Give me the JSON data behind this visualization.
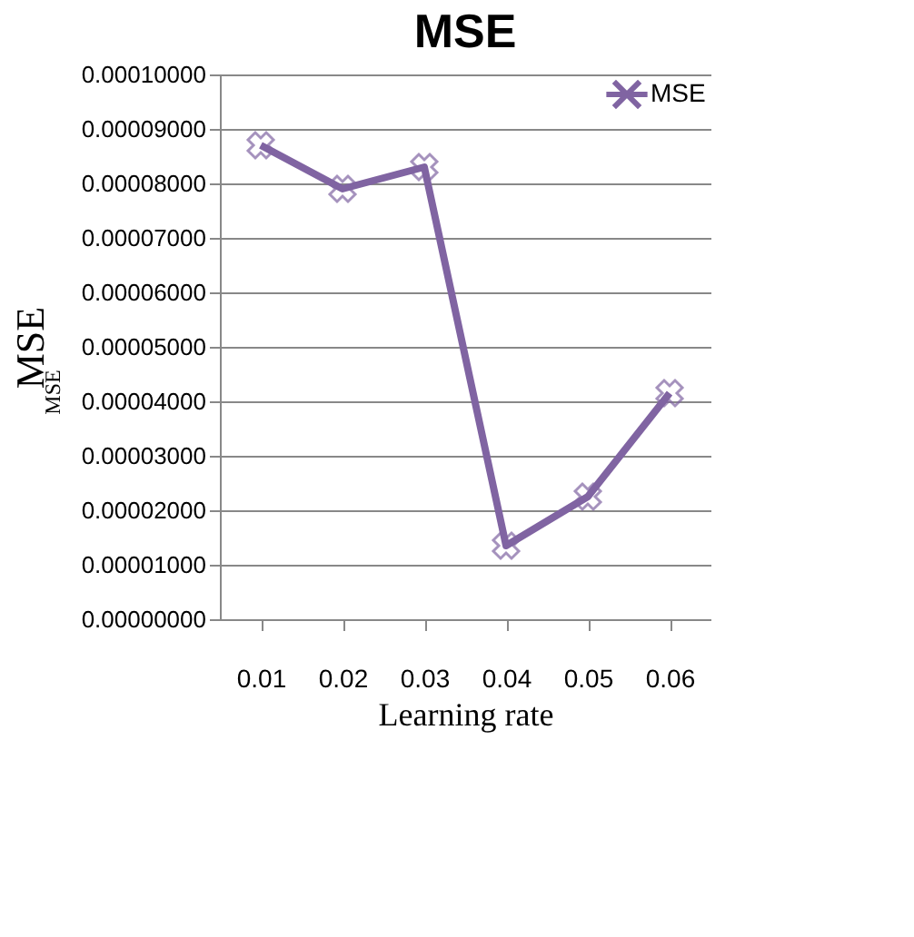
{
  "chart_data": {
    "type": "line",
    "title": "MSE",
    "xlabel": "Learning rate",
    "ylabel": "MSE",
    "annotations": [
      "MSE"
    ],
    "categories": [
      "0.01",
      "0.02",
      "0.03",
      "0.04",
      "0.05",
      "0.06"
    ],
    "series": [
      {
        "name": "MSE",
        "color": "#8064a2",
        "values": [
          8.7e-05,
          7.9e-05,
          8.3e-05,
          1.35e-05,
          2.25e-05,
          4.15e-05
        ]
      }
    ],
    "ylim": [
      0,
      0.0001
    ],
    "yticks": [
      {
        "value": 0,
        "label": "0.00000000"
      },
      {
        "value": 1e-05,
        "label": "0.00001000"
      },
      {
        "value": 2e-05,
        "label": "0.00002000"
      },
      {
        "value": 3e-05,
        "label": "0.00003000"
      },
      {
        "value": 4e-05,
        "label": "0.00004000"
      },
      {
        "value": 5e-05,
        "label": "0.00005000"
      },
      {
        "value": 6e-05,
        "label": "0.00006000"
      },
      {
        "value": 7e-05,
        "label": "0.00007000"
      },
      {
        "value": 8e-05,
        "label": "0.00008000"
      },
      {
        "value": 9e-05,
        "label": "0.00009000"
      },
      {
        "value": 0.0001,
        "label": "0.00010000"
      }
    ],
    "grid": "y",
    "legend": "top right",
    "marker": "cross",
    "line_style": "solid"
  }
}
